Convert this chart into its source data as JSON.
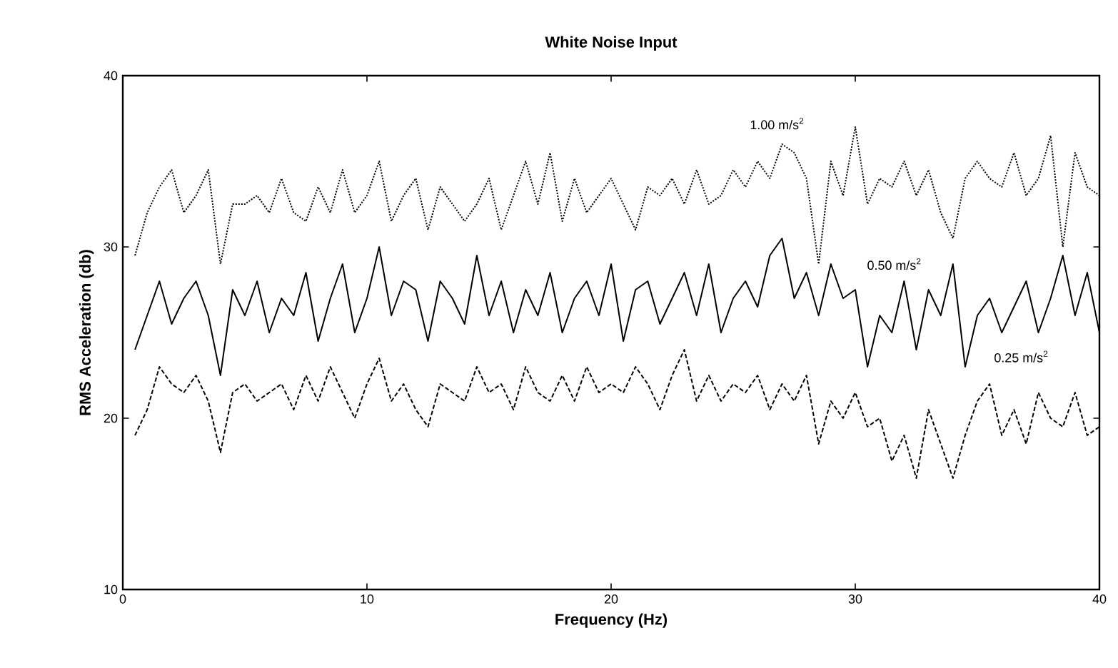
{
  "chart_data": {
    "type": "line",
    "title": "White Noise Input",
    "xlabel": "Frequency (Hz)",
    "ylabel": "RMS Acceleration (db)",
    "xlim": [
      0,
      40
    ],
    "ylim": [
      10,
      40
    ],
    "xticks": [
      0,
      10,
      20,
      30,
      40
    ],
    "yticks": [
      10,
      20,
      30,
      40
    ],
    "grid": false,
    "marker": "none",
    "x": [
      0.5,
      1,
      1.5,
      2,
      2.5,
      3,
      3.5,
      4,
      4.5,
      5,
      5.5,
      6,
      6.5,
      7,
      7.5,
      8,
      8.5,
      9,
      9.5,
      10,
      10.5,
      11,
      11.5,
      12,
      12.5,
      13,
      13.5,
      14,
      14.5,
      15,
      15.5,
      16,
      16.5,
      17,
      17.5,
      18,
      18.5,
      19,
      19.5,
      20,
      20.5,
      21,
      21.5,
      22,
      22.5,
      23,
      23.5,
      24,
      24.5,
      25,
      25.5,
      26,
      26.5,
      27,
      27.5,
      28,
      28.5,
      29,
      29.5,
      30,
      30.5,
      31,
      31.5,
      32,
      32.5,
      33,
      33.5,
      34,
      34.5,
      35,
      35.5,
      36,
      36.5,
      37,
      37.5,
      38,
      38.5,
      39,
      39.5,
      40
    ],
    "series": [
      {
        "name": "1.00 m/s$^{2}$",
        "color": "#000000",
        "line_style": "dotted",
        "values": [
          29.5,
          32,
          33.5,
          34.5,
          32,
          33,
          34.5,
          29,
          32.5,
          32.5,
          33,
          32,
          34,
          32,
          31.5,
          33.5,
          32,
          34.5,
          32,
          33,
          35,
          31.5,
          33,
          34,
          31,
          33.5,
          32.5,
          31.5,
          32.5,
          34,
          31,
          33,
          35,
          32.5,
          35.5,
          31.5,
          34,
          32,
          33,
          34,
          32.5,
          31,
          33.5,
          33,
          34,
          32.5,
          34.5,
          32.5,
          33,
          34.5,
          33.5,
          35,
          34,
          36,
          35.5,
          34,
          29,
          35,
          33,
          37,
          32.5,
          34,
          33.5,
          35,
          33,
          34.5,
          32,
          30.5,
          34,
          35,
          34,
          33.5,
          35.5,
          33,
          34,
          36.5,
          30,
          35.5,
          33.5,
          33
        ]
      },
      {
        "name": "0.50 m/s$^{2}$",
        "color": "#000000",
        "line_style": "solid",
        "values": [
          24,
          26,
          28,
          25.5,
          27,
          28,
          26,
          22.5,
          27.5,
          26,
          28,
          25,
          27,
          26,
          28.5,
          24.5,
          27,
          29,
          25,
          27,
          30,
          26,
          28,
          27.5,
          24.5,
          28,
          27,
          25.5,
          29.5,
          26,
          28,
          25,
          27.5,
          26,
          28.5,
          25,
          27,
          28,
          26,
          29,
          24.5,
          27.5,
          28,
          25.5,
          27,
          28.5,
          26,
          29,
          25,
          27,
          28,
          26.5,
          29.5,
          30.5,
          27,
          28.5,
          26,
          29,
          27,
          27.5,
          23,
          26,
          25,
          28,
          24,
          27.5,
          26,
          29,
          23,
          26,
          27,
          25,
          26.5,
          28,
          25,
          27,
          29.5,
          26,
          28.5,
          25
        ]
      },
      {
        "name": "0.25 m/s$^{2}$",
        "color": "#000000",
        "line_style": "dashed",
        "values": [
          19,
          20.5,
          23,
          22,
          21.5,
          22.5,
          21,
          18,
          21.5,
          22,
          21,
          21.5,
          22,
          20.5,
          22.5,
          21,
          23,
          21.5,
          20,
          22,
          23.5,
          21,
          22,
          20.5,
          19.5,
          22,
          21.5,
          21,
          23,
          21.5,
          22,
          20.5,
          23,
          21.5,
          21,
          22.5,
          21,
          23,
          21.5,
          22,
          21.5,
          23,
          22,
          20.5,
          22.5,
          24,
          21,
          22.5,
          21,
          22,
          21.5,
          22.5,
          20.5,
          22,
          21,
          22.5,
          18.5,
          21,
          20,
          21.5,
          19.5,
          20,
          17.5,
          19,
          16.5,
          20.5,
          18.5,
          16.5,
          19,
          21,
          22,
          19,
          20.5,
          18.5,
          21.5,
          20,
          19.5,
          21.5,
          19,
          19.5
        ]
      }
    ]
  }
}
